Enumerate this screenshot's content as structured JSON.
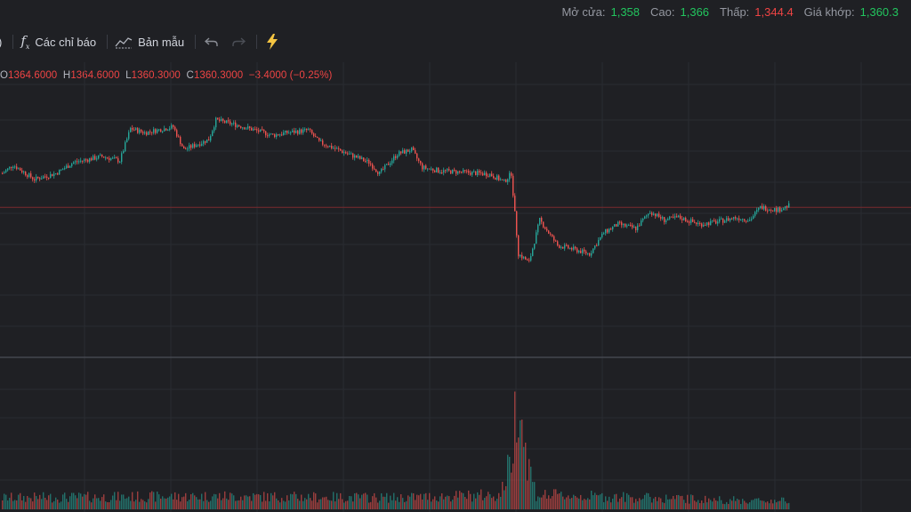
{
  "stats": [
    {
      "label": "Mở cửa:",
      "value": "1,358",
      "color": "#22c55e"
    },
    {
      "label": "Cao:",
      "value": "1,366",
      "color": "#22c55e"
    },
    {
      "label": "Thấp:",
      "value": "1,344.4",
      "color": "#ef4444"
    },
    {
      "label": "Giá khớp:",
      "value": "1,360.3",
      "color": "#22c55e"
    }
  ],
  "toolbar": {
    "left_fragment": ")",
    "indicators_label": "Các chỉ báo",
    "templates_label": "Bản mẫu"
  },
  "ohlc": {
    "o_key": "O",
    "o_val": "1364.6000",
    "h_key": "H",
    "h_val": "1364.6000",
    "l_key": "L",
    "l_val": "1360.3000",
    "c_key": "C",
    "c_val": "1360.3000",
    "change": "−3.4000 (−0.25%)"
  },
  "chart_data": {
    "type": "candlestick",
    "price_range": [
      1340,
      1372
    ],
    "reference_line": 1357.5,
    "colors": {
      "up": "#26a69a",
      "down": "#ef5350",
      "background": "#1f2024",
      "reference": "#7a2a2e"
    },
    "price_anchors": [
      [
        0,
        1361.5
      ],
      [
        6,
        1362.5
      ],
      [
        18,
        1360.8
      ],
      [
        30,
        1361.5
      ],
      [
        40,
        1362.8
      ],
      [
        56,
        1363.5
      ],
      [
        66,
        1363.0
      ],
      [
        72,
        1366.8
      ],
      [
        80,
        1366.3
      ],
      [
        96,
        1367.0
      ],
      [
        102,
        1364.3
      ],
      [
        116,
        1365.5
      ],
      [
        120,
        1367.8
      ],
      [
        132,
        1367.2
      ],
      [
        152,
        1366.0
      ],
      [
        160,
        1366.3
      ],
      [
        172,
        1366.6
      ],
      [
        178,
        1365.2
      ],
      [
        192,
        1364.0
      ],
      [
        206,
        1362.8
      ],
      [
        212,
        1361.5
      ],
      [
        222,
        1363.8
      ],
      [
        230,
        1364.3
      ],
      [
        236,
        1362.2
      ],
      [
        246,
        1361.8
      ],
      [
        262,
        1361.6
      ],
      [
        274,
        1361.4
      ],
      [
        282,
        1360.5
      ],
      [
        286,
        1361.5
      ],
      [
        290,
        1352.0
      ],
      [
        296,
        1351.0
      ],
      [
        302,
        1356.0
      ],
      [
        312,
        1353.0
      ],
      [
        320,
        1352.6
      ],
      [
        330,
        1352.0
      ],
      [
        338,
        1354.5
      ],
      [
        346,
        1355.5
      ],
      [
        356,
        1355.0
      ],
      [
        364,
        1357.0
      ],
      [
        372,
        1356.0
      ],
      [
        380,
        1356.3
      ],
      [
        392,
        1355.5
      ],
      [
        402,
        1355.8
      ],
      [
        412,
        1356.3
      ],
      [
        420,
        1356.0
      ],
      [
        426,
        1357.5
      ],
      [
        436,
        1357.2
      ],
      [
        442,
        1357.7
      ]
    ],
    "volume_anchors": [
      [
        0,
        0.08
      ],
      [
        120,
        0.09
      ],
      [
        220,
        0.08
      ],
      [
        280,
        0.1
      ],
      [
        286,
        0.35
      ],
      [
        290,
        0.9
      ],
      [
        294,
        0.4
      ],
      [
        300,
        0.1
      ],
      [
        330,
        0.09
      ],
      [
        420,
        0.06
      ],
      [
        442,
        0.06
      ]
    ]
  }
}
